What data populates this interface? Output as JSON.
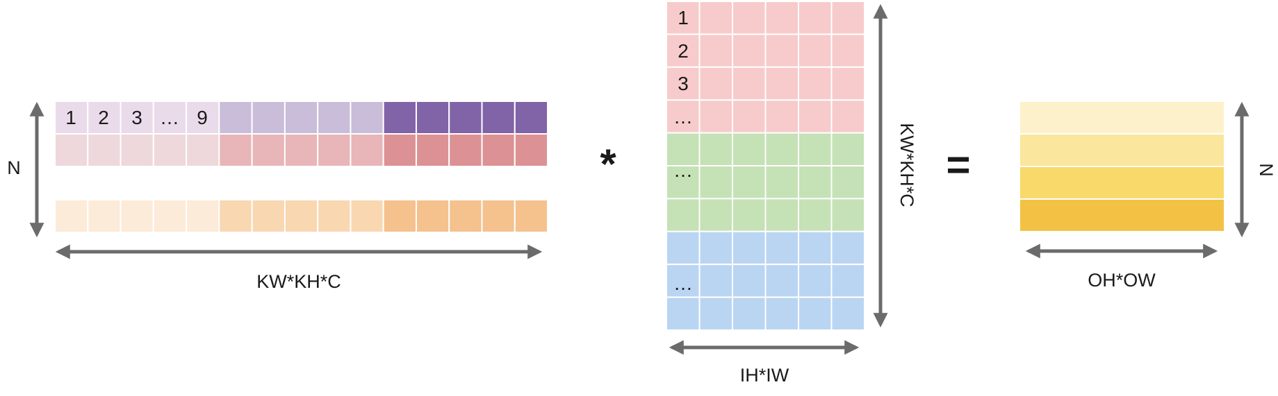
{
  "colors": {
    "grid_line": "#ffffff",
    "arrow": "#6b6b6b",
    "row1": [
      "#eadbea",
      "#c9bdda",
      "#8163a7"
    ],
    "row2": [
      "#eed8dc",
      "#e8b6b8",
      "#dc9294"
    ],
    "row3": [
      "#fcebd9",
      "#f8d7b1",
      "#f5c18d"
    ],
    "mid_pink": "#f7cbcb",
    "mid_green": "#c5e1b6",
    "mid_blue": "#bad5f2",
    "out": [
      "#fdf1cb",
      "#fae69d",
      "#f8d96a",
      "#f3c244"
    ]
  },
  "left_matrix": {
    "row_labels": [
      "1",
      "2",
      "3",
      "…",
      "9"
    ],
    "width_label": "KW*KH*C",
    "height_label": "N"
  },
  "operator_multiply": "*",
  "middle_matrix": {
    "row_labels": [
      "1",
      "2",
      "3",
      "…",
      "…",
      "…"
    ],
    "height_label": "KW*KH*C",
    "width_label": "IH*IW"
  },
  "operator_equals": "=",
  "right_matrix": {
    "width_label": "OH*OW",
    "height_label": "N"
  }
}
